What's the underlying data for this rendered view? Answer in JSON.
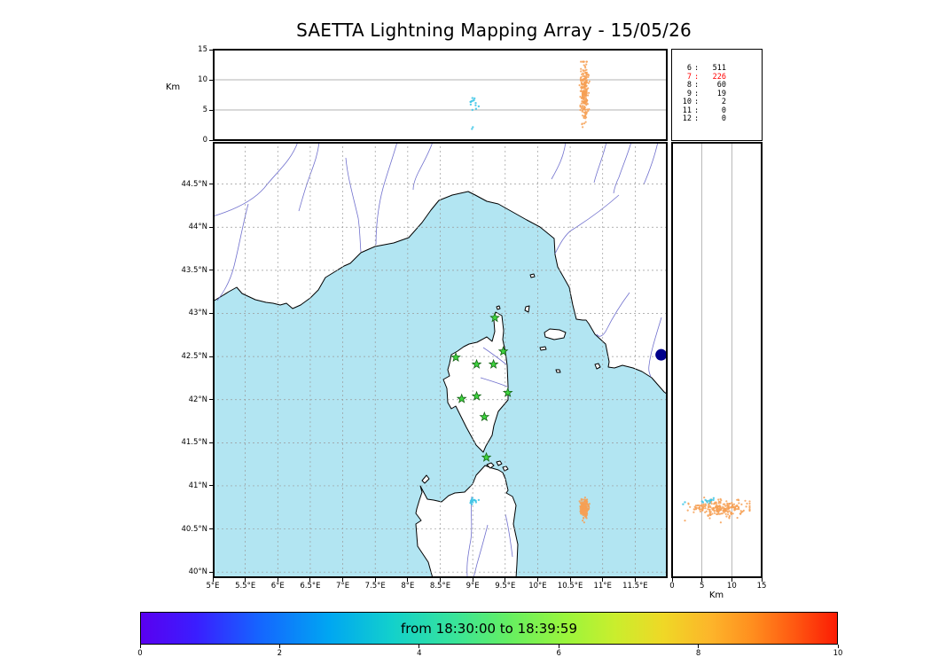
{
  "chart_data": {
    "type": "scatter",
    "title": "SAETTA Lightning Mapping Array - 15/05/26",
    "panels": {
      "altitude_vs_longitude": {
        "type": "scatter",
        "ylabel": "Km",
        "ylim": [
          0,
          15
        ],
        "yticks": [
          0,
          5,
          10,
          15
        ],
        "gridlines": [
          5,
          10
        ],
        "x_shared_with": "map_longitude"
      },
      "map": {
        "type": "scatter",
        "lon_range": [
          5.0,
          12.0
        ],
        "lat_range": [
          39.93,
          44.99
        ],
        "lat_ticks": [
          {
            "value": 44.5,
            "label": "44.5°N"
          },
          {
            "value": 44.0,
            "label": "44°N"
          },
          {
            "value": 43.5,
            "label": "43.5°N"
          },
          {
            "value": 43.0,
            "label": "43°N"
          },
          {
            "value": 42.5,
            "label": "42.5°N"
          },
          {
            "value": 42.0,
            "label": "42°N"
          },
          {
            "value": 41.5,
            "label": "41.5°N"
          },
          {
            "value": 41.0,
            "label": "41°N"
          },
          {
            "value": 40.5,
            "label": "40.5°N"
          },
          {
            "value": 40.0,
            "label": "40°N"
          }
        ],
        "lon_ticks": [
          {
            "value": 5.0,
            "label": "5°E"
          },
          {
            "value": 5.5,
            "label": "5.5°E"
          },
          {
            "value": 6.0,
            "label": "6°E"
          },
          {
            "value": 6.5,
            "label": "6.5°E"
          },
          {
            "value": 7.0,
            "label": "7°E"
          },
          {
            "value": 7.5,
            "label": "7.5°E"
          },
          {
            "value": 8.0,
            "label": "8°E"
          },
          {
            "value": 8.5,
            "label": "8.5°E"
          },
          {
            "value": 9.0,
            "label": "9°E"
          },
          {
            "value": 9.5,
            "label": "9.5°E"
          },
          {
            "value": 10.0,
            "label": "10°E"
          },
          {
            "value": 10.5,
            "label": "10.5°E"
          },
          {
            "value": 11.0,
            "label": "11°E"
          },
          {
            "value": 11.5,
            "label": "11.5°E"
          }
        ],
        "lon_gridlines": [
          5.5,
          6.0,
          6.5,
          7.0,
          7.5,
          8.0,
          8.5,
          9.0,
          9.5,
          10.0,
          10.5,
          11.0,
          11.5
        ],
        "lat_gridlines": [
          40.0,
          40.5,
          41.0,
          41.5,
          42.0,
          42.5,
          43.0,
          43.5,
          44.0,
          44.5
        ]
      },
      "altitude_vs_latitude": {
        "type": "scatter",
        "xlabel": "Km",
        "xlim": [
          0,
          15
        ],
        "xticks": [
          0,
          5,
          10,
          15
        ],
        "gridlines": [
          5,
          10
        ],
        "y_shared_with": "map_latitude"
      }
    },
    "source_counts": {
      "rows": [
        {
          "station": "6",
          "count": "511",
          "highlight": false
        },
        {
          "station": "7",
          "count": "226",
          "highlight": true
        },
        {
          "station": "8",
          "count": "60",
          "highlight": false
        },
        {
          "station": "9",
          "count": "19",
          "highlight": false
        },
        {
          "station": "10",
          "count": "2",
          "highlight": false
        },
        {
          "station": "11",
          "count": "0",
          "highlight": false
        },
        {
          "station": "12",
          "count": "0",
          "highlight": false
        }
      ]
    },
    "colorbar": {
      "label": "from 18:30:00 to 18:39:59",
      "range": [
        0,
        10
      ],
      "ticks": [
        0,
        2,
        4,
        6,
        8,
        10
      ],
      "gradient": [
        "#5a00f0 0%",
        "#3a1eff 8%",
        "#1565ff 17%",
        "#00a6f2 27%",
        "#12d0cc 36%",
        "#38e49a 45%",
        "#66ef61 53%",
        "#9af53c 61%",
        "#c9ee2d 68%",
        "#efd826 75%",
        "#fdb42a 82%",
        "#ff8d1e 88%",
        "#ff5711 94%",
        "#fb1c04 100%"
      ]
    },
    "clusters": [
      {
        "id": "storm-cell-east",
        "color_key": "storm_orange",
        "count": 230,
        "lon": 10.72,
        "lon_sd": 0.032,
        "lat": 40.74,
        "lat_sd": 0.05,
        "alt": 8.0,
        "alt_sd": 2.4,
        "alt_min": 0.6,
        "alt_max": 13.0,
        "dot": 1.1
      },
      {
        "id": "storm-cell-west",
        "color_key": "storm_cyan",
        "count": 13,
        "lon": 9.0,
        "lon_sd": 0.045,
        "lat": 40.82,
        "lat_sd": 0.018,
        "alt": 6.1,
        "alt_sd": 0.55,
        "alt_min": 5.0,
        "alt_max": 7.2,
        "dot": 1.2
      },
      {
        "id": "storm-cell-west-low",
        "color_key": "storm_cyan",
        "count": 2,
        "lon": 9.02,
        "lon_sd": 0.02,
        "lat": 40.8,
        "lat_sd": 0.01,
        "alt": 1.7,
        "alt_sd": 0.4,
        "alt_min": 1.0,
        "alt_max": 2.5,
        "dot": 1.2
      }
    ],
    "stations": [
      {
        "lon": 9.34,
        "lat": 42.95
      },
      {
        "lon": 8.74,
        "lat": 42.49
      },
      {
        "lon": 9.06,
        "lat": 42.41
      },
      {
        "lon": 9.32,
        "lat": 42.41
      },
      {
        "lon": 9.47,
        "lat": 42.56
      },
      {
        "lon": 8.83,
        "lat": 42.01
      },
      {
        "lon": 9.06,
        "lat": 42.04
      },
      {
        "lon": 9.54,
        "lat": 42.08
      },
      {
        "lon": 9.18,
        "lat": 41.8
      },
      {
        "lon": 9.21,
        "lat": 41.33
      }
    ],
    "map_features": {
      "lake_bolsena": {
        "lon": 11.9,
        "lat": 42.52,
        "radius_px": 6.5
      }
    },
    "colors": {
      "sea": "#b2e5f2",
      "land": "#ffffff",
      "coast": "#000000",
      "river": "#6060c8",
      "grid": "#9a9a9a",
      "storm_orange": "#f6a055",
      "storm_cyan": "#3cc6e6",
      "station_green": "#3ed43e",
      "station_edge": "#156315",
      "lake": "#00008b",
      "highlight_red": "#ff0000"
    }
  }
}
